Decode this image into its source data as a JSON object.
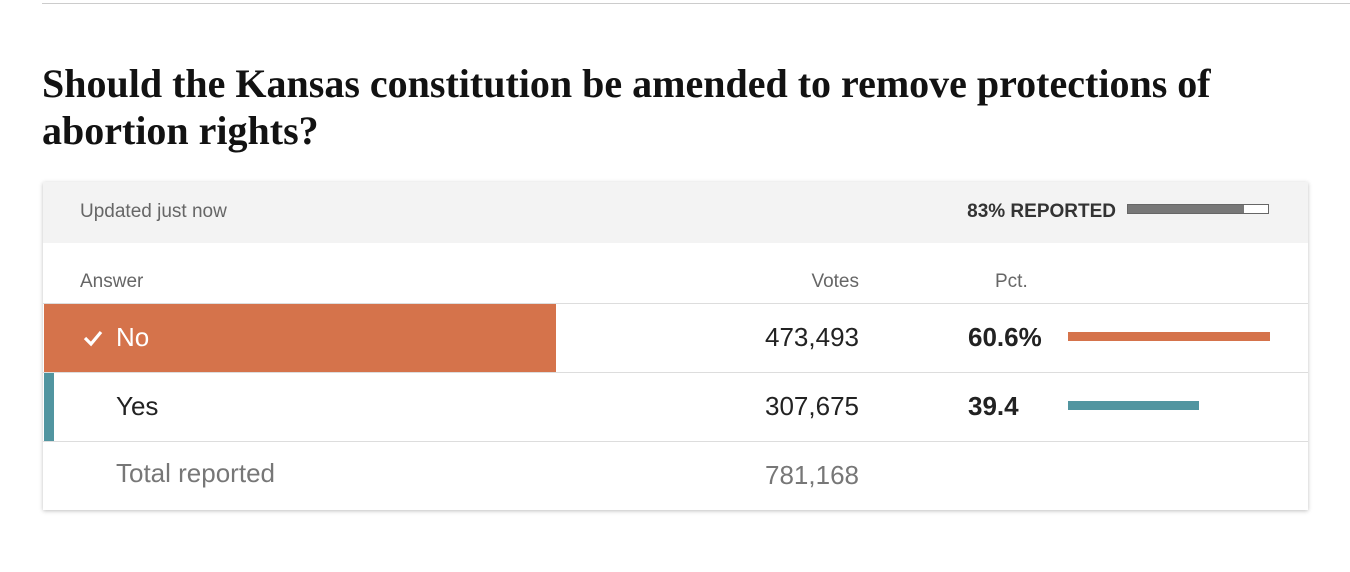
{
  "title": "Should the Kansas constitution be amended to remove protections of abortion rights?",
  "updated": "Updated just now",
  "reported": "83% REPORTED",
  "reported_value": 83,
  "columns": [
    "Answer",
    "Votes",
    "Pct."
  ],
  "rows": [
    {
      "answer": "No",
      "votes": "473,493",
      "pct": "60.6%",
      "pct_value": 60.6,
      "color": "#d5734b",
      "winner": true
    },
    {
      "answer": "Yes",
      "votes": "307,675",
      "pct": "39.4",
      "pct_value": 39.4,
      "color": "#5195a0",
      "winner": false
    }
  ],
  "total": {
    "label": "Total reported",
    "votes": "781,168"
  }
}
